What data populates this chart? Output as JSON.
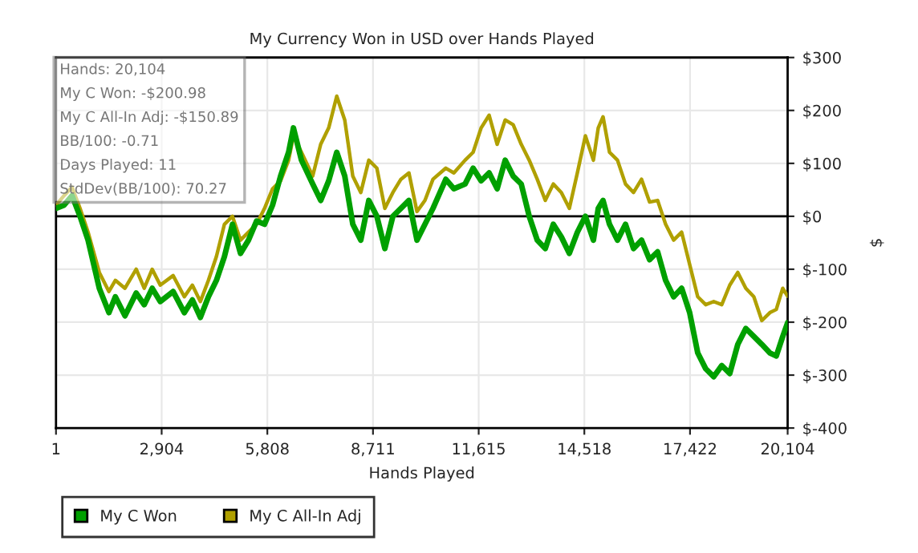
{
  "chart_data": {
    "type": "line",
    "title": "My Currency Won in USD over Hands Played",
    "xlabel": "Hands Played",
    "ylabel": "$",
    "annotations": [
      "Hands: 20,104",
      "My C Won: -$200.98",
      "My C All-In Adj: -$150.89",
      "BB/100: -0.71",
      "Days Played: 11",
      "StdDev(BB/100): 70.27"
    ],
    "x": [
      1,
      221,
      441,
      662,
      882,
      1191,
      1455,
      1632,
      1896,
      2205,
      2425,
      2645,
      2866,
      3219,
      3527,
      3748,
      3968,
      4189,
      4409,
      4629,
      4850,
      5070,
      5290,
      5511,
      5731,
      5951,
      6172,
      6392,
      6525,
      6745,
      7054,
      7274,
      7494,
      7715,
      7935,
      8156,
      8376,
      8596,
      8817,
      9037,
      9257,
      9478,
      9698,
      9919,
      10139,
      10359,
      10712,
      10933,
      11241,
      11462,
      11682,
      11902,
      12123,
      12343,
      12563,
      12784,
      13004,
      13224,
      13445,
      13665,
      13886,
      14106,
      14326,
      14547,
      14767,
      14900,
      15032,
      15209,
      15429,
      15649,
      15870,
      16090,
      16310,
      16531,
      16751,
      16971,
      17192,
      17412,
      17633,
      17853,
      18073,
      18294,
      18514,
      18734,
      18955,
      19175,
      19395,
      19616,
      19792,
      19969,
      20104
    ],
    "series": [
      {
        "name": "My C Won",
        "color": "#00a000",
        "values": [
          15,
          21,
          39,
          0,
          -45,
          -136,
          -182,
          -152,
          -188,
          -145,
          -167,
          -136,
          -161,
          -142,
          -182,
          -158,
          -191,
          -152,
          -121,
          -76,
          -15,
          -70,
          -45,
          -9,
          -15,
          21,
          76,
          121,
          167,
          106,
          61,
          30,
          67,
          121,
          76,
          -15,
          -45,
          30,
          0,
          -61,
          0,
          15,
          30,
          -45,
          -15,
          15,
          70,
          52,
          61,
          91,
          67,
          82,
          52,
          106,
          76,
          61,
          0,
          -45,
          -61,
          -15,
          -39,
          -70,
          -30,
          0,
          -45,
          15,
          30,
          -15,
          -45,
          -15,
          -61,
          -45,
          -82,
          -67,
          -121,
          -152,
          -136,
          -182,
          -258,
          -288,
          -303,
          -282,
          -297,
          -242,
          -212,
          -227,
          -242,
          -258,
          -264,
          -227,
          -201
        ]
      },
      {
        "name": "My C All-In Adj",
        "color": "#b0a000",
        "values": [
          21,
          39,
          55,
          15,
          -30,
          -106,
          -142,
          -121,
          -136,
          -100,
          -136,
          -100,
          -130,
          -112,
          -152,
          -130,
          -161,
          -121,
          -76,
          -15,
          0,
          -45,
          -30,
          -15,
          15,
          52,
          67,
          106,
          152,
          121,
          76,
          136,
          167,
          227,
          182,
          76,
          45,
          106,
          91,
          15,
          45,
          70,
          82,
          9,
          30,
          70,
          91,
          82,
          106,
          121,
          167,
          191,
          136,
          182,
          173,
          136,
          106,
          70,
          30,
          61,
          45,
          15,
          82,
          152,
          106,
          167,
          188,
          121,
          106,
          61,
          45,
          70,
          27,
          30,
          -15,
          -45,
          -30,
          -91,
          -152,
          -167,
          -161,
          -167,
          -130,
          -106,
          -136,
          -152,
          -197,
          -182,
          -176,
          -136,
          -151
        ]
      }
    ],
    "xlim": [
      1,
      20104
    ],
    "xticks": [
      {
        "value": 1,
        "label": "1"
      },
      {
        "value": 2904,
        "label": "2,904"
      },
      {
        "value": 5808,
        "label": "5,808"
      },
      {
        "value": 8711,
        "label": "8,711"
      },
      {
        "value": 11615,
        "label": "11,615"
      },
      {
        "value": 14518,
        "label": "14,518"
      },
      {
        "value": 17422,
        "label": "17,422"
      },
      {
        "value": 20104,
        "label": "20,104"
      }
    ],
    "ylim": [
      -400,
      300
    ],
    "yticks": [
      {
        "value": -400,
        "label": "$-400"
      },
      {
        "value": -300,
        "label": "$-300"
      },
      {
        "value": -200,
        "label": "$-200"
      },
      {
        "value": -100,
        "label": "$-100"
      },
      {
        "value": 0,
        "label": "$0"
      },
      {
        "value": 100,
        "label": "$100"
      },
      {
        "value": 200,
        "label": "$200"
      },
      {
        "value": 300,
        "label": "$300"
      }
    ],
    "ref_lines": [
      {
        "axis": "y",
        "value": 0,
        "color": "#000000"
      }
    ],
    "grid": true,
    "legend": "bottom left",
    "marker": "none",
    "line_style": "solid"
  }
}
